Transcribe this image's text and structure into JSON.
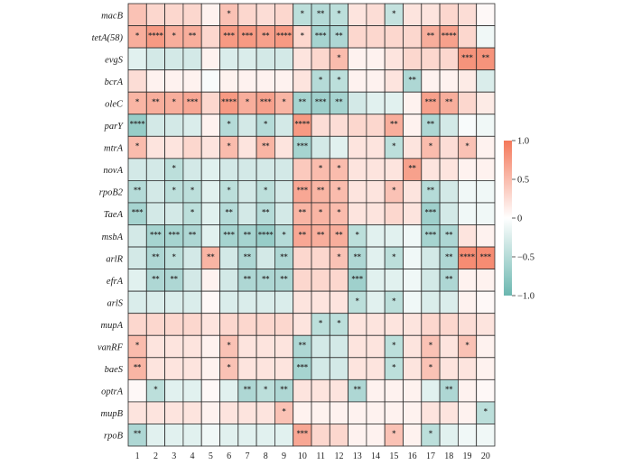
{
  "chart_data": {
    "type": "heatmap",
    "rows": [
      "macB",
      "tetA(58)",
      "evgS",
      "bcrA",
      "oleC",
      "parY",
      "mtrA",
      "novA",
      "rpoB2",
      "TaeA",
      "msbA",
      "arlR",
      "efrA",
      "arlS",
      "mupA",
      "vanRF",
      "baeS",
      "optrA",
      "mupB",
      "rpoB"
    ],
    "columns": [
      "1",
      "2",
      "3",
      "4",
      "5",
      "6",
      "7",
      "8",
      "9",
      "10",
      "11",
      "12",
      "13",
      "14",
      "15",
      "16",
      "17",
      "18",
      "19",
      "20"
    ],
    "values": [
      [
        0.45,
        0.3,
        0.3,
        0.3,
        0.1,
        0.45,
        0.3,
        0.25,
        0.3,
        -0.45,
        -0.5,
        -0.45,
        0.2,
        0.25,
        -0.4,
        0.2,
        0.2,
        0.3,
        0.25,
        0.05
      ],
      [
        0.6,
        0.75,
        0.6,
        0.6,
        0.3,
        0.75,
        0.75,
        0.7,
        0.75,
        0.3,
        -0.6,
        -0.55,
        0.3,
        0.3,
        0.3,
        0.3,
        0.6,
        0.7,
        0.3,
        -0.1
      ],
      [
        -0.2,
        -0.3,
        -0.3,
        -0.3,
        0.1,
        -0.25,
        -0.25,
        -0.3,
        -0.3,
        0.2,
        0.3,
        0.5,
        0.1,
        0.1,
        0.2,
        0.3,
        0.3,
        0.3,
        0.8,
        0.8
      ],
      [
        0.25,
        0.1,
        0.1,
        0.1,
        -0.05,
        0.1,
        0.1,
        0.1,
        0.1,
        0.2,
        -0.5,
        -0.45,
        0.1,
        0.1,
        0.2,
        -0.55,
        0.1,
        0.1,
        0.15,
        -0.25
      ],
      [
        0.55,
        0.6,
        0.6,
        0.65,
        0.3,
        0.75,
        0.6,
        0.7,
        0.55,
        -0.6,
        -0.65,
        -0.6,
        -0.3,
        -0.2,
        -0.2,
        0.1,
        0.7,
        0.6,
        0.3,
        0.15
      ],
      [
        -0.7,
        -0.3,
        -0.3,
        -0.25,
        0.1,
        -0.5,
        -0.3,
        -0.5,
        -0.3,
        0.75,
        0.25,
        0.25,
        0.3,
        0.3,
        0.6,
        0.1,
        -0.55,
        -0.3,
        -0.05,
        -0.1
      ],
      [
        0.5,
        0.2,
        0.2,
        0.3,
        0.2,
        0.5,
        0.2,
        0.55,
        0.2,
        -0.6,
        -0.3,
        -0.2,
        0.2,
        0.2,
        -0.45,
        0.2,
        0.5,
        0.25,
        0.45,
        0.1
      ],
      [
        -0.3,
        -0.3,
        -0.45,
        -0.3,
        -0.2,
        -0.3,
        -0.3,
        -0.3,
        -0.3,
        0.4,
        0.5,
        0.5,
        0.2,
        0.2,
        0.2,
        0.7,
        0.2,
        0.2,
        0.1,
        0.1
      ],
      [
        -0.5,
        -0.3,
        -0.45,
        -0.45,
        -0.2,
        -0.45,
        -0.3,
        -0.45,
        -0.3,
        0.65,
        0.55,
        0.5,
        0.2,
        0.2,
        0.45,
        0.2,
        -0.5,
        -0.3,
        -0.1,
        -0.1
      ],
      [
        -0.6,
        -0.3,
        -0.3,
        -0.45,
        -0.2,
        -0.5,
        -0.3,
        -0.5,
        -0.3,
        0.55,
        0.55,
        0.5,
        0.2,
        0.2,
        0.3,
        0.2,
        -0.65,
        -0.3,
        -0.1,
        -0.1
      ],
      [
        -0.3,
        -0.6,
        -0.6,
        -0.55,
        -0.2,
        -0.6,
        -0.6,
        -0.7,
        -0.5,
        0.65,
        0.6,
        0.6,
        -0.45,
        -0.2,
        -0.2,
        -0.1,
        -0.6,
        -0.55,
        0.2,
        0.1
      ],
      [
        -0.3,
        -0.55,
        -0.45,
        -0.3,
        0.55,
        -0.3,
        -0.55,
        -0.3,
        -0.55,
        0.3,
        0.3,
        0.45,
        -0.55,
        -0.2,
        -0.45,
        -0.1,
        -0.3,
        -0.55,
        0.85,
        0.85
      ],
      [
        -0.2,
        -0.55,
        -0.55,
        -0.3,
        0.1,
        -0.3,
        -0.55,
        -0.55,
        -0.55,
        0.3,
        0.3,
        0.3,
        -0.65,
        -0.2,
        -0.2,
        -0.1,
        -0.3,
        -0.55,
        0.1,
        0.1
      ],
      [
        -0.25,
        -0.25,
        -0.25,
        -0.25,
        0.05,
        -0.25,
        -0.25,
        -0.25,
        -0.25,
        0.2,
        0.2,
        0.2,
        -0.45,
        -0.2,
        -0.45,
        -0.1,
        -0.25,
        -0.25,
        0.1,
        0.05
      ],
      [
        0.3,
        0.3,
        0.3,
        0.3,
        0.2,
        0.3,
        0.3,
        0.3,
        0.3,
        0.2,
        -0.45,
        -0.45,
        0.2,
        0.2,
        0.2,
        0.2,
        0.3,
        0.3,
        0.25,
        0.2
      ],
      [
        0.5,
        0.2,
        0.2,
        0.2,
        0.1,
        0.45,
        0.2,
        0.2,
        0.2,
        -0.55,
        -0.3,
        -0.3,
        0.2,
        0.2,
        -0.45,
        0.2,
        0.45,
        0.2,
        0.45,
        0.1
      ],
      [
        0.55,
        0.2,
        0.2,
        0.2,
        0.1,
        0.45,
        0.2,
        0.2,
        0.2,
        -0.6,
        -0.3,
        -0.3,
        0.2,
        0.2,
        -0.45,
        0.2,
        0.45,
        0.2,
        0.2,
        0.1
      ],
      [
        0.05,
        -0.45,
        -0.2,
        -0.2,
        0.05,
        -0.2,
        -0.55,
        -0.45,
        -0.55,
        0.2,
        0.2,
        0.2,
        -0.55,
        0.1,
        0.1,
        0.1,
        -0.2,
        -0.55,
        0.1,
        0.05
      ],
      [
        0.2,
        0.2,
        0.2,
        0.2,
        0.1,
        0.2,
        0.2,
        0.2,
        0.45,
        0.1,
        0.1,
        0.1,
        0.1,
        0.1,
        0.1,
        0.1,
        0.2,
        0.2,
        0.1,
        -0.45
      ],
      [
        -0.55,
        -0.2,
        -0.2,
        -0.2,
        -0.1,
        -0.2,
        -0.2,
        -0.2,
        -0.2,
        0.65,
        0.3,
        0.3,
        0.1,
        0.1,
        0.45,
        0.1,
        -0.45,
        -0.2,
        -0.1,
        -0.1
      ]
    ],
    "significance": [
      [
        "",
        "",
        "",
        "",
        "",
        "*",
        "",
        "",
        "",
        "*",
        "**",
        "*",
        "",
        "",
        "*",
        "",
        "",
        "",
        "",
        ""
      ],
      [
        "*",
        "****",
        "*",
        "**",
        "",
        "***",
        "***",
        "**",
        "****",
        "*",
        "***",
        "**",
        "",
        "",
        "",
        "",
        "**",
        "****",
        "",
        ""
      ],
      [
        "",
        "",
        "",
        "",
        "",
        "",
        "",
        "",
        "",
        "",
        "",
        "*",
        "",
        "",
        "",
        "",
        "",
        "",
        "***",
        "**"
      ],
      [
        "",
        "",
        "",
        "",
        "",
        "",
        "",
        "",
        "",
        "",
        "*",
        "*",
        "",
        "",
        "",
        "**",
        "",
        "",
        "",
        ""
      ],
      [
        "*",
        "**",
        "*",
        "***",
        "",
        "****",
        "*",
        "***",
        "*",
        "**",
        "***",
        "**",
        "",
        "",
        "",
        "",
        "***",
        "**",
        "",
        ""
      ],
      [
        "****",
        "",
        "",
        "",
        "",
        "*",
        "",
        "*",
        "",
        "****",
        "",
        "",
        "",
        "",
        "**",
        "",
        "**",
        "",
        "",
        ""
      ],
      [
        "*",
        "",
        "",
        "",
        "",
        "*",
        "",
        "**",
        "",
        "***",
        "",
        "",
        "",
        "",
        "*",
        "",
        "*",
        "",
        "*",
        ""
      ],
      [
        "",
        "",
        "*",
        "",
        "",
        "",
        "",
        "",
        "",
        "",
        "*",
        "*",
        "",
        "",
        "",
        "**",
        "",
        "",
        "",
        ""
      ],
      [
        "**",
        "",
        "*",
        "*",
        "",
        "*",
        "",
        "*",
        "",
        "***",
        "**",
        "*",
        "",
        "",
        "*",
        "",
        "**",
        "",
        "",
        ""
      ],
      [
        "***",
        "",
        "",
        "*",
        "",
        "**",
        "",
        "**",
        "",
        "**",
        "*",
        "*",
        "",
        "",
        "",
        "",
        "***",
        "",
        "",
        ""
      ],
      [
        "",
        "***",
        "***",
        "**",
        "",
        "***",
        "**",
        "****",
        "*",
        "**",
        "**",
        "**",
        "*",
        "",
        "",
        "",
        "***",
        "**",
        "",
        ""
      ],
      [
        "",
        "**",
        "*",
        "",
        "**",
        "",
        "**",
        "",
        "**",
        "",
        "",
        "*",
        "**",
        "",
        "*",
        "",
        "",
        "**",
        "****",
        "***"
      ],
      [
        "",
        "**",
        "**",
        "",
        "",
        "",
        "**",
        "**",
        "**",
        "",
        "",
        "",
        "***",
        "",
        "",
        "",
        "",
        "**",
        "",
        ""
      ],
      [
        "",
        "",
        "",
        "",
        "",
        "",
        "",
        "",
        "",
        "",
        "",
        "",
        "*",
        "",
        "*",
        "",
        "",
        "",
        "",
        ""
      ],
      [
        "",
        "",
        "",
        "",
        "",
        "",
        "",
        "",
        "",
        "",
        "*",
        "*",
        "",
        "",
        "",
        "",
        "",
        "",
        "",
        ""
      ],
      [
        "*",
        "",
        "",
        "",
        "",
        "*",
        "",
        "",
        "",
        "**",
        "",
        "",
        "",
        "",
        "*",
        "",
        "*",
        "",
        "*",
        ""
      ],
      [
        "**",
        "",
        "",
        "",
        "",
        "*",
        "",
        "",
        "",
        "***",
        "",
        "",
        "",
        "",
        "*",
        "",
        "*",
        "",
        "",
        ""
      ],
      [
        "",
        "*",
        "",
        "",
        "",
        "",
        "**",
        "*",
        "**",
        "",
        "",
        "",
        "**",
        "",
        "",
        "",
        "",
        "**",
        "",
        ""
      ],
      [
        "",
        "",
        "",
        "",
        "",
        "",
        "",
        "",
        "*",
        "",
        "",
        "",
        "",
        "",
        "",
        "",
        "",
        "",
        "",
        "*"
      ],
      [
        "**",
        "",
        "",
        "",
        "",
        "",
        "",
        "",
        "",
        "***",
        "",
        "",
        "",
        "",
        "*",
        "",
        "*",
        "",
        "",
        ""
      ]
    ],
    "colorbar": {
      "min": -1.0,
      "max": 1.0,
      "ticks": [
        1.0,
        0.5,
        0,
        -0.5,
        -1.0
      ],
      "tick_labels": [
        "1.0",
        "0.5",
        "0",
        "−0.5",
        "−1.0"
      ],
      "low_color": "#6bb7b0",
      "mid_color": "#ffffff",
      "high_color": "#f4785a"
    }
  }
}
